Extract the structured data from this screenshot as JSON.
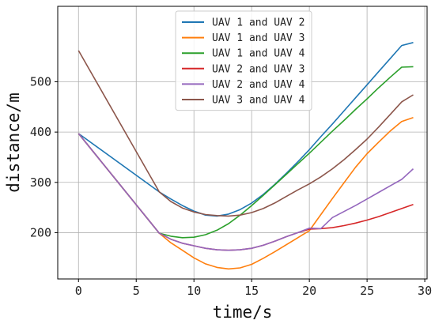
{
  "chart_data": {
    "type": "line",
    "title": "",
    "xlabel": "time/s",
    "ylabel": "distance/m",
    "xlim": [
      -1.8,
      30.2
    ],
    "ylim": [
      108,
      650
    ],
    "xticks": [
      0,
      5,
      10,
      15,
      20,
      25,
      30
    ],
    "yticks": [
      200,
      300,
      400,
      500
    ],
    "grid": true,
    "legend_position": "top-center",
    "series": [
      {
        "name": "UAV 1 and UAV 2",
        "color": "#1f77b4",
        "x": [
          0,
          7,
          8,
          9,
          10,
          11,
          12,
          13,
          14,
          15,
          16,
          17,
          18,
          19,
          20,
          21,
          22,
          23,
          24,
          25,
          26,
          27,
          28,
          29
        ],
        "y": [
          397,
          281,
          267,
          254,
          243,
          235,
          233,
          237,
          246,
          259,
          276,
          296,
          318,
          341,
          365,
          391,
          416,
          442,
          468,
          494,
          520,
          546,
          572,
          578
        ]
      },
      {
        "name": "UAV 1 and UAV 3",
        "color": "#ff7f0e",
        "x": [
          0,
          7,
          8,
          9,
          10,
          11,
          12,
          13,
          14,
          15,
          16,
          17,
          18,
          19,
          20,
          21,
          22,
          23,
          24,
          25,
          26,
          27,
          28,
          29
        ],
        "y": [
          397,
          199,
          180,
          165,
          150,
          138,
          131,
          128,
          130,
          137,
          149,
          162,
          176,
          190,
          204,
          236,
          268,
          299,
          330,
          357,
          380,
          402,
          421,
          429
        ]
      },
      {
        "name": "UAV 1 and UAV 4",
        "color": "#2ca02c",
        "x": [
          0,
          7,
          8,
          9,
          10,
          11,
          12,
          13,
          14,
          15,
          16,
          17,
          18,
          19,
          20,
          21,
          22,
          23,
          24,
          25,
          26,
          27,
          28,
          29
        ],
        "y": [
          397,
          199,
          193,
          190,
          191,
          196,
          205,
          218,
          235,
          254,
          274,
          295,
          316,
          337,
          358,
          380,
          402,
          423,
          445,
          466,
          488,
          509,
          529,
          530
        ]
      },
      {
        "name": "UAV 2 and UAV 3",
        "color": "#d62728",
        "x": [
          0,
          7,
          8,
          9,
          10,
          11,
          12,
          13,
          14,
          15,
          16,
          17,
          18,
          19,
          20,
          21,
          22,
          23,
          24,
          25,
          26,
          27,
          28,
          29
        ],
        "y": [
          397,
          199,
          187,
          179,
          174,
          169,
          166,
          165,
          166,
          169,
          175,
          183,
          192,
          200,
          207,
          208,
          210,
          214,
          219,
          225,
          232,
          240,
          248,
          256
        ]
      },
      {
        "name": "UAV 2 and UAV 4",
        "color": "#9467bd",
        "x": [
          0,
          7,
          8,
          9,
          10,
          11,
          12,
          13,
          14,
          15,
          16,
          17,
          18,
          19,
          20,
          21,
          22,
          23,
          24,
          25,
          26,
          27,
          28,
          29
        ],
        "y": [
          397,
          199,
          187,
          179,
          174,
          169,
          166,
          165,
          166,
          169,
          175,
          183,
          192,
          200,
          209,
          208,
          230,
          242,
          254,
          267,
          280,
          293,
          306,
          327
        ]
      },
      {
        "name": "UAV 3 and UAV 4",
        "color": "#8c564b",
        "x": [
          0,
          7,
          8,
          9,
          10,
          11,
          12,
          13,
          14,
          15,
          16,
          17,
          18,
          19,
          20,
          21,
          22,
          23,
          24,
          25,
          26,
          27,
          28,
          29
        ],
        "y": [
          562,
          281,
          262,
          249,
          241,
          236,
          234,
          233,
          235,
          240,
          248,
          259,
          272,
          285,
          297,
          311,
          327,
          345,
          365,
          386,
          410,
          435,
          460,
          474
        ]
      }
    ]
  }
}
